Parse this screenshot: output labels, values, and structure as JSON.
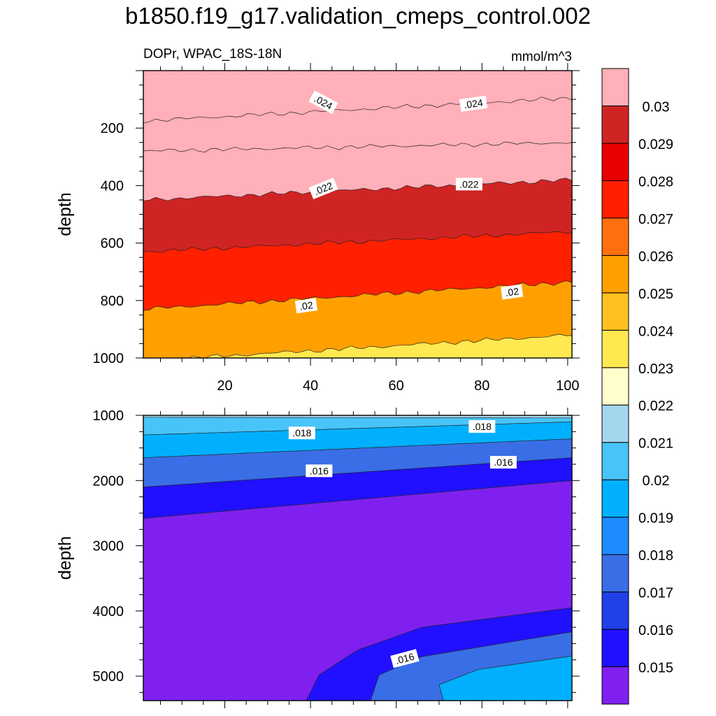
{
  "title": "b1850.f19_g17.validation_cmeps_control.002",
  "chart_data": {
    "type": "contour",
    "panels": [
      {
        "left_label": "DOPr, WPAC_18S-18N",
        "right_label": "mmol/m^3",
        "ylabel": "depth",
        "xlim": [
          1,
          101
        ],
        "ylim": [
          0,
          1000
        ],
        "x_ticks": [
          20,
          40,
          60,
          80,
          100
        ],
        "x_tick_labels": [
          "20",
          "40",
          "60",
          "80",
          "100"
        ],
        "y_ticks": [
          200,
          400,
          600,
          800,
          1000
        ],
        "y_tick_labels": [
          "200",
          "400",
          "600",
          "800",
          "1000"
        ],
        "base_level": 0.0245,
        "contours": [
          {
            "level": 0.024,
            "depth_left": 175,
            "depth_right": 95
          },
          {
            "level": 0.0235,
            "depth_left": 280,
            "depth_right": 250
          },
          {
            "level": 0.0225,
            "depth_left": 450,
            "depth_right": 380
          },
          {
            "level": 0.0215,
            "depth_left": 630,
            "depth_right": 560
          },
          {
            "level": 0.0205,
            "depth_left": 830,
            "depth_right": 735
          },
          {
            "level": 0.0195,
            "depth_left": 1010,
            "depth_right": 920
          }
        ],
        "contour_labels": [
          {
            "text": ".024",
            "x": 43,
            "depth": 110,
            "angle": 28
          },
          {
            "text": ".024",
            "x": 78,
            "depth": 115,
            "angle": -8
          },
          {
            "text": ".022",
            "x": 43,
            "depth": 410,
            "angle": -22
          },
          {
            "text": ".022",
            "x": 77,
            "depth": 395,
            "angle": 0
          },
          {
            "text": ".02",
            "x": 39,
            "depth": 818,
            "angle": -8
          },
          {
            "text": ".02",
            "x": 87,
            "depth": 770,
            "angle": -8
          }
        ]
      },
      {
        "ylabel": "depth",
        "xlim": [
          1,
          101
        ],
        "ylim": [
          1000,
          5375
        ],
        "x_ticks": [
          20,
          40,
          60,
          80,
          100
        ],
        "y_ticks": [
          1000,
          2000,
          3000,
          4000,
          5000
        ],
        "y_tick_labels": [
          "1000",
          "2000",
          "3000",
          "4000",
          "5000"
        ],
        "base_level": 0.0185,
        "contours": [
          {
            "level": 0.018,
            "depth_left": 1030,
            "depth_right": 1040
          },
          {
            "level": 0.0175,
            "depth_left": 1300,
            "depth_right": 1100
          },
          {
            "level": 0.0165,
            "depth_left": 1650,
            "depth_right": 1360
          },
          {
            "level": 0.0155,
            "depth_left": 2100,
            "depth_right": 1650
          },
          {
            "level": 0.0145,
            "depth_left": 2580,
            "depth_right": 2000
          }
        ],
        "bottom_pools": [
          {
            "level": 0.0155,
            "x": [
              39,
              42,
              51,
              66,
              101,
              101,
              41
            ],
            "depth": [
              5375,
              4980,
              4600,
              4250,
              3950,
              5375,
              5375
            ]
          },
          {
            "level": 0.0165,
            "x": [
              54,
              56,
              66,
              101,
              101,
              55
            ],
            "depth": [
              5375,
              4980,
              4700,
              4320,
              5375,
              5375
            ]
          },
          {
            "level": 0.0175,
            "x": [
              70,
              79,
              101,
              101,
              71
            ],
            "depth": [
              5130,
              4900,
              4690,
              5375,
              5375
            ]
          }
        ],
        "contour_labels": [
          {
            "text": ".018",
            "x": 38,
            "depth": 1270,
            "angle": 0
          },
          {
            "text": ".018",
            "x": 80,
            "depth": 1170,
            "angle": 0
          },
          {
            "text": ".016",
            "x": 42,
            "depth": 1850,
            "angle": 0
          },
          {
            "text": ".016",
            "x": 85,
            "depth": 1720,
            "angle": 0
          },
          {
            "text": ".016",
            "x": 62,
            "depth": 4730,
            "angle": -15
          }
        ]
      }
    ],
    "colorbar": {
      "levels": [
        0.015,
        0.0155,
        0.016,
        0.0165,
        0.017,
        0.0175,
        0.018,
        0.0185,
        0.019,
        0.0195,
        0.02,
        0.0205,
        0.021,
        0.0215,
        0.022,
        0.0225,
        0.023,
        0.0235,
        0.024,
        0.0245,
        0.025,
        0.0255,
        0.026,
        0.0265,
        0.027,
        0.0275,
        0.028,
        0.0285,
        0.029,
        0.0295,
        0.03
      ],
      "colors": [
        "#8020f0",
        "#2010ff",
        "#2040e8",
        "#3a6ee6",
        "#1e8cff",
        "#00b0ff",
        "#48c4f8",
        "#a4d6ee",
        "#ffffcc",
        "#ffe850",
        "#ffc020",
        "#ffa000",
        "#ff7010",
        "#ff2000",
        "#e80000",
        "#d02424",
        "#ffb0b8"
      ],
      "tick_labels": [
        "0.015",
        "0.016",
        "0.017",
        "0.018",
        "0.019",
        "0.02",
        "0.021",
        "0.022",
        "0.023",
        "0.024",
        "0.025",
        "0.026",
        "0.027",
        "0.028",
        "0.029",
        "0.03"
      ]
    }
  }
}
